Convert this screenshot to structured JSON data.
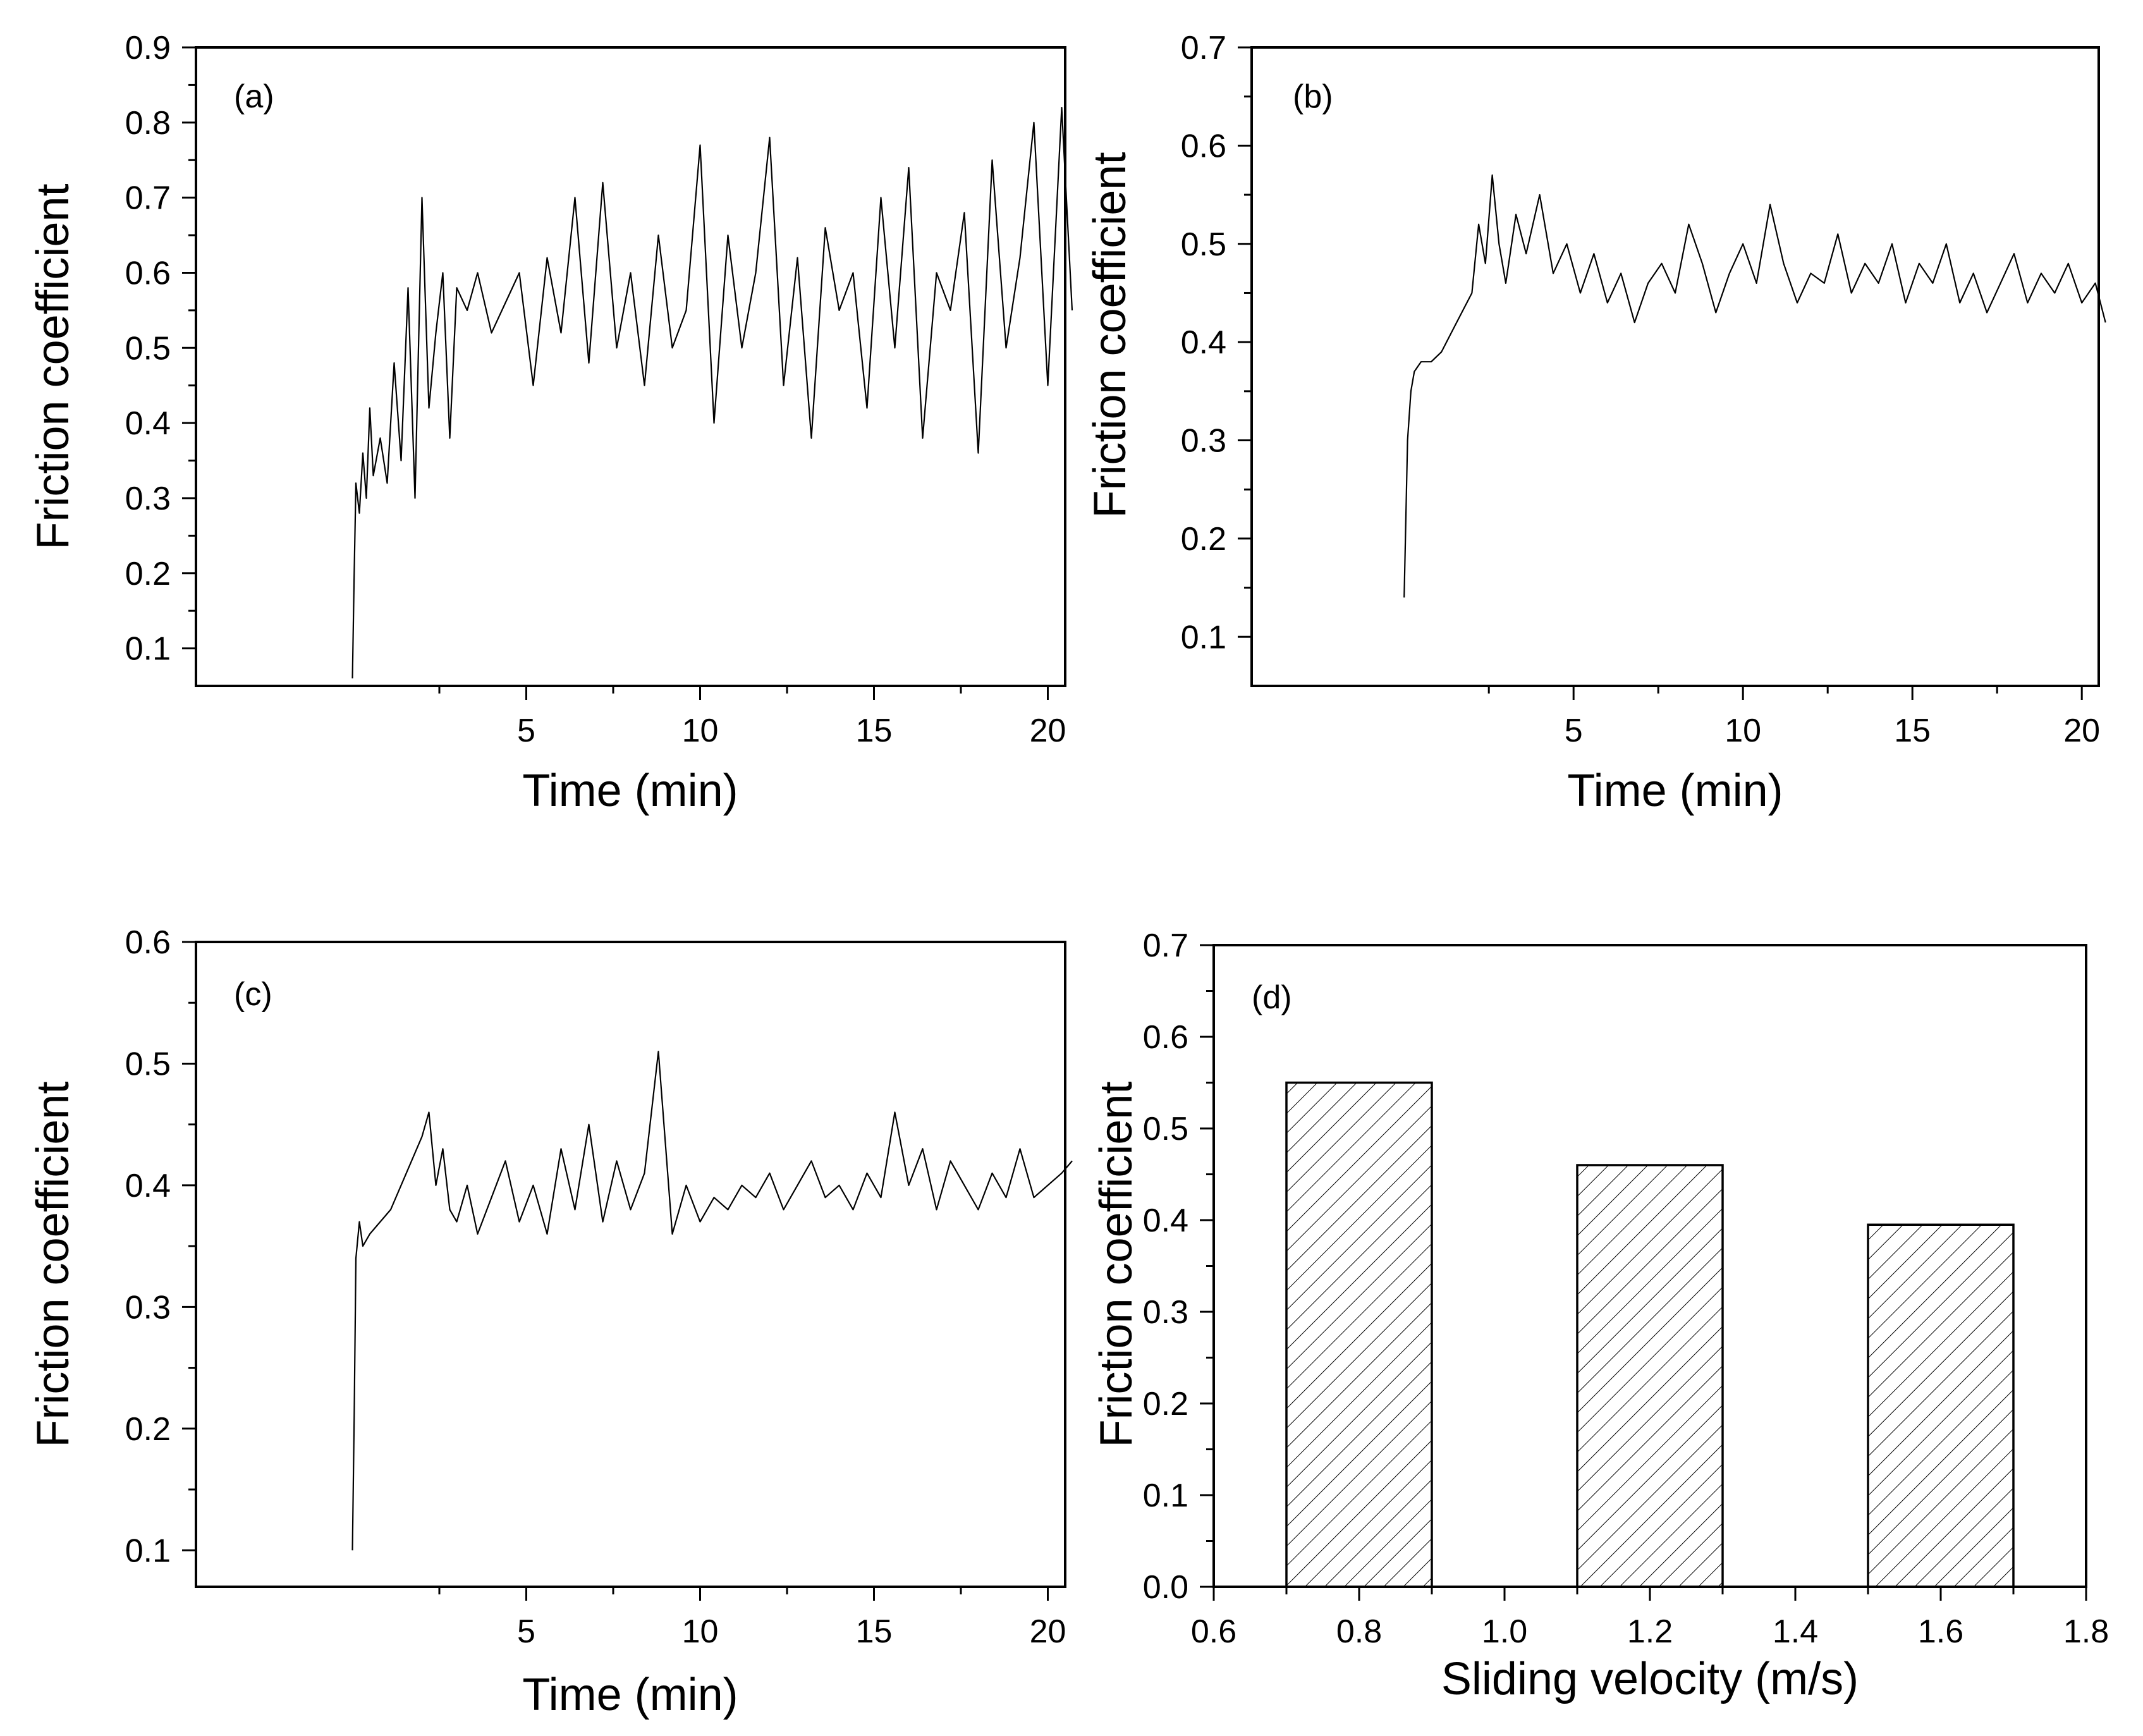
{
  "chart_data": [
    {
      "id": "a",
      "type": "line",
      "panel_label": "(a)",
      "xlabel": "Time (min)",
      "ylabel": "Friction coefficient",
      "xlim": [
        -4.5,
        20.5
      ],
      "ylim": [
        0.05,
        0.9
      ],
      "xticks": [
        5,
        10,
        15,
        20
      ],
      "xtick_labels": [
        "5",
        "10",
        "15",
        "20"
      ],
      "yticks": [
        0.1,
        0.2,
        0.3,
        0.4,
        0.5,
        0.6,
        0.7,
        0.8,
        0.9
      ],
      "ytick_labels": [
        "0.1",
        "0.2",
        "0.3",
        "0.4",
        "0.5",
        "0.6",
        "0.7",
        "0.8",
        "0.9"
      ],
      "series": [
        {
          "name": "friction",
          "x": [
            0,
            0.05,
            0.1,
            0.2,
            0.3,
            0.4,
            0.5,
            0.6,
            0.8,
            1.0,
            1.2,
            1.4,
            1.6,
            1.8,
            2.0,
            2.2,
            2.4,
            2.6,
            2.8,
            3.0,
            3.3,
            3.6,
            4.0,
            4.4,
            4.8,
            5.2,
            5.6,
            6.0,
            6.4,
            6.8,
            7.2,
            7.6,
            8.0,
            8.4,
            8.8,
            9.2,
            9.6,
            10.0,
            10.4,
            10.8,
            11.2,
            11.6,
            12.0,
            12.4,
            12.8,
            13.2,
            13.6,
            14.0,
            14.4,
            14.8,
            15.2,
            15.6,
            16.0,
            16.4,
            16.8,
            17.2,
            17.6,
            18.0,
            18.4,
            18.8,
            19.2,
            19.6,
            20.0,
            20.4,
            20.7
          ],
          "y": [
            0.06,
            0.2,
            0.32,
            0.28,
            0.36,
            0.3,
            0.42,
            0.33,
            0.38,
            0.32,
            0.48,
            0.35,
            0.58,
            0.3,
            0.7,
            0.42,
            0.52,
            0.6,
            0.38,
            0.58,
            0.55,
            0.6,
            0.52,
            0.56,
            0.6,
            0.45,
            0.62,
            0.52,
            0.7,
            0.48,
            0.72,
            0.5,
            0.6,
            0.45,
            0.65,
            0.5,
            0.55,
            0.77,
            0.4,
            0.65,
            0.5,
            0.6,
            0.78,
            0.45,
            0.62,
            0.38,
            0.66,
            0.55,
            0.6,
            0.42,
            0.7,
            0.5,
            0.74,
            0.38,
            0.6,
            0.55,
            0.68,
            0.36,
            0.75,
            0.5,
            0.62,
            0.8,
            0.45,
            0.82,
            0.55
          ]
        }
      ]
    },
    {
      "id": "b",
      "type": "line",
      "panel_label": "(b)",
      "xlabel": "Time (min)",
      "ylabel": "Friction coefficient",
      "xlim": [
        -4.5,
        20.5
      ],
      "ylim": [
        0.05,
        0.7
      ],
      "xticks": [
        5,
        10,
        15,
        20
      ],
      "xtick_labels": [
        "5",
        "10",
        "15",
        "20"
      ],
      "yticks": [
        0.1,
        0.2,
        0.3,
        0.4,
        0.5,
        0.6,
        0.7
      ],
      "ytick_labels": [
        "0.1",
        "0.2",
        "0.3",
        "0.4",
        "0.5",
        "0.6",
        "0.7"
      ],
      "series": [
        {
          "name": "friction",
          "x": [
            0,
            0.05,
            0.1,
            0.2,
            0.3,
            0.5,
            0.8,
            1.1,
            1.4,
            1.7,
            2.0,
            2.2,
            2.4,
            2.6,
            2.8,
            3.0,
            3.3,
            3.6,
            4.0,
            4.4,
            4.8,
            5.2,
            5.6,
            6.0,
            6.4,
            6.8,
            7.2,
            7.6,
            8.0,
            8.4,
            8.8,
            9.2,
            9.6,
            10.0,
            10.4,
            10.8,
            11.2,
            11.6,
            12.0,
            12.4,
            12.8,
            13.2,
            13.6,
            14.0,
            14.4,
            14.8,
            15.2,
            15.6,
            16.0,
            16.4,
            16.8,
            17.2,
            17.6,
            18.0,
            18.4,
            18.8,
            19.2,
            19.6,
            20.0,
            20.4,
            20.7
          ],
          "y": [
            0.14,
            0.22,
            0.3,
            0.35,
            0.37,
            0.38,
            0.38,
            0.39,
            0.41,
            0.43,
            0.45,
            0.52,
            0.48,
            0.57,
            0.5,
            0.46,
            0.53,
            0.49,
            0.55,
            0.47,
            0.5,
            0.45,
            0.49,
            0.44,
            0.47,
            0.42,
            0.46,
            0.48,
            0.45,
            0.52,
            0.48,
            0.43,
            0.47,
            0.5,
            0.46,
            0.54,
            0.48,
            0.44,
            0.47,
            0.46,
            0.51,
            0.45,
            0.48,
            0.46,
            0.5,
            0.44,
            0.48,
            0.46,
            0.5,
            0.44,
            0.47,
            0.43,
            0.46,
            0.49,
            0.44,
            0.47,
            0.45,
            0.48,
            0.44,
            0.46,
            0.42
          ]
        }
      ]
    },
    {
      "id": "c",
      "type": "line",
      "panel_label": "(c)",
      "xlabel": "Time (min)",
      "ylabel": "Friction coefficient",
      "xlim": [
        -4.5,
        20.5
      ],
      "ylim": [
        0.07,
        0.6
      ],
      "xticks": [
        5,
        10,
        15,
        20
      ],
      "xtick_labels": [
        "5",
        "10",
        "15",
        "20"
      ],
      "yticks": [
        0.1,
        0.2,
        0.3,
        0.4,
        0.5,
        0.6
      ],
      "ytick_labels": [
        "0.1",
        "0.2",
        "0.3",
        "0.4",
        "0.5",
        "0.6"
      ],
      "series": [
        {
          "name": "friction",
          "x": [
            0,
            0.05,
            0.1,
            0.2,
            0.3,
            0.5,
            0.8,
            1.1,
            1.4,
            1.7,
            2.0,
            2.2,
            2.4,
            2.6,
            2.8,
            3.0,
            3.3,
            3.6,
            4.0,
            4.4,
            4.8,
            5.2,
            5.6,
            6.0,
            6.4,
            6.8,
            7.2,
            7.6,
            8.0,
            8.4,
            8.8,
            9.2,
            9.6,
            10.0,
            10.4,
            10.8,
            11.2,
            11.6,
            12.0,
            12.4,
            12.8,
            13.2,
            13.6,
            14.0,
            14.4,
            14.8,
            15.2,
            15.6,
            16.0,
            16.4,
            16.8,
            17.2,
            17.6,
            18.0,
            18.4,
            18.8,
            19.2,
            19.6,
            20.0,
            20.4,
            20.7
          ],
          "y": [
            0.1,
            0.21,
            0.34,
            0.37,
            0.35,
            0.36,
            0.37,
            0.38,
            0.4,
            0.42,
            0.44,
            0.46,
            0.4,
            0.43,
            0.38,
            0.37,
            0.4,
            0.36,
            0.39,
            0.42,
            0.37,
            0.4,
            0.36,
            0.43,
            0.38,
            0.45,
            0.37,
            0.42,
            0.38,
            0.41,
            0.51,
            0.36,
            0.4,
            0.37,
            0.39,
            0.38,
            0.4,
            0.39,
            0.41,
            0.38,
            0.4,
            0.42,
            0.39,
            0.4,
            0.38,
            0.41,
            0.39,
            0.46,
            0.4,
            0.43,
            0.38,
            0.42,
            0.4,
            0.38,
            0.41,
            0.39,
            0.43,
            0.39,
            0.4,
            0.41,
            0.42
          ]
        }
      ]
    },
    {
      "id": "d",
      "type": "bar",
      "panel_label": "(d)",
      "xlabel": "Sliding velocity (m/s)",
      "ylabel": "Friction coefficient",
      "xlim": [
        0.6,
        1.8
      ],
      "ylim": [
        0.0,
        0.7
      ],
      "xticks": [
        0.6,
        0.8,
        1.0,
        1.2,
        1.4,
        1.6,
        1.8
      ],
      "xtick_labels": [
        "0.6",
        "0.8",
        "1.0",
        "1.2",
        "1.4",
        "1.6",
        "1.8"
      ],
      "yticks": [
        0.0,
        0.1,
        0.2,
        0.3,
        0.4,
        0.5,
        0.6,
        0.7
      ],
      "ytick_labels": [
        "0.0",
        "0.1",
        "0.2",
        "0.3",
        "0.4",
        "0.5",
        "0.6",
        "0.7"
      ],
      "categories": [
        0.8,
        1.2,
        1.6
      ],
      "bar_width": 0.2,
      "values": [
        0.55,
        0.46,
        0.395
      ],
      "fill": "hatched"
    }
  ]
}
